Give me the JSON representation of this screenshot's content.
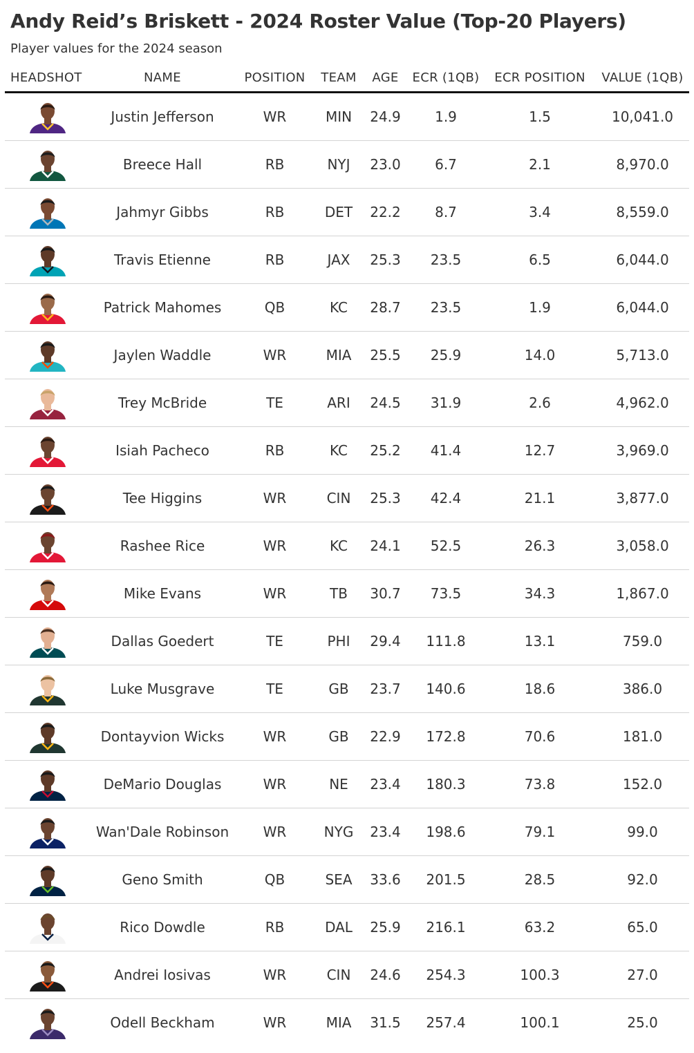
{
  "title": "Andy Reid’s Briskett - 2024 Roster Value (Top-20 Players)",
  "subtitle": "Player values for the 2024 season",
  "columns": {
    "headshot": "HEADSHOT",
    "name": "NAME",
    "position": "POSITION",
    "team": "TEAM",
    "age": "AGE",
    "ecr": "ECR (1QB)",
    "ecr_position": "ECR POSITION",
    "value": "VALUE (1QB)"
  },
  "players": [
    {
      "name": "Justin Jefferson",
      "position": "WR",
      "team": "MIN",
      "age": "24.9",
      "ecr": "1.9",
      "ecr_position": "1.5",
      "value": "10,041.0",
      "jersey": "#4f2683",
      "trim": "#ffc62f",
      "skin": "#7a4a32",
      "hair": "#2b1a12"
    },
    {
      "name": "Breece Hall",
      "position": "RB",
      "team": "NYJ",
      "age": "23.0",
      "ecr": "6.7",
      "ecr_position": "2.1",
      "value": "8,970.0",
      "jersey": "#125740",
      "trim": "#ffffff",
      "skin": "#6b4430",
      "hair": "#1e1e1e"
    },
    {
      "name": "Jahmyr Gibbs",
      "position": "RB",
      "team": "DET",
      "age": "22.2",
      "ecr": "8.7",
      "ecr_position": "3.4",
      "value": "8,559.0",
      "jersey": "#0076b6",
      "trim": "#b0b7bc",
      "skin": "#7a4a32",
      "hair": "#1a1a1a"
    },
    {
      "name": "Travis Etienne",
      "position": "RB",
      "team": "JAX",
      "age": "25.3",
      "ecr": "23.5",
      "ecr_position": "6.5",
      "value": "6,044.0",
      "jersey": "#00a3b5",
      "trim": "#101820",
      "skin": "#5e3a28",
      "hair": "#1a1a1a"
    },
    {
      "name": "Patrick Mahomes",
      "position": "QB",
      "team": "KC",
      "age": "28.7",
      "ecr": "23.5",
      "ecr_position": "1.9",
      "value": "6,044.0",
      "jersey": "#e31837",
      "trim": "#ffb81c",
      "skin": "#9a6a4a",
      "hair": "#2b1a12"
    },
    {
      "name": "Jaylen Waddle",
      "position": "WR",
      "team": "MIA",
      "age": "25.5",
      "ecr": "25.9",
      "ecr_position": "14.0",
      "value": "5,713.0",
      "jersey": "#22b5c2",
      "trim": "#fc4c02",
      "skin": "#5e3a28",
      "hair": "#1a1a1a"
    },
    {
      "name": "Trey McBride",
      "position": "TE",
      "team": "ARI",
      "age": "24.5",
      "ecr": "31.9",
      "ecr_position": "2.6",
      "value": "4,962.0",
      "jersey": "#97233f",
      "trim": "#ffffff",
      "skin": "#e9b99a",
      "hair": "#c8a36a"
    },
    {
      "name": "Isiah Pacheco",
      "position": "RB",
      "team": "KC",
      "age": "25.2",
      "ecr": "41.4",
      "ecr_position": "12.7",
      "value": "3,969.0",
      "jersey": "#e31837",
      "trim": "#ffffff",
      "skin": "#6b4430",
      "hair": "#2b1a12"
    },
    {
      "name": "Tee Higgins",
      "position": "WR",
      "team": "CIN",
      "age": "25.3",
      "ecr": "42.4",
      "ecr_position": "21.1",
      "value": "3,877.0",
      "jersey": "#1c1c1c",
      "trim": "#fb4f14",
      "skin": "#6b4430",
      "hair": "#1a1a1a"
    },
    {
      "name": "Rashee Rice",
      "position": "WR",
      "team": "KC",
      "age": "24.1",
      "ecr": "52.5",
      "ecr_position": "26.3",
      "value": "3,058.0",
      "jersey": "#e31837",
      "trim": "#ffffff",
      "skin": "#6b4430",
      "hair": "#8a1a1a"
    },
    {
      "name": "Mike Evans",
      "position": "WR",
      "team": "TB",
      "age": "30.7",
      "ecr": "73.5",
      "ecr_position": "34.3",
      "value": "1,867.0",
      "jersey": "#d50a0a",
      "trim": "#ffffff",
      "skin": "#b07a58",
      "hair": "#2b1a12"
    },
    {
      "name": "Dallas Goedert",
      "position": "TE",
      "team": "PHI",
      "age": "29.4",
      "ecr": "111.8",
      "ecr_position": "13.1",
      "value": "759.0",
      "jersey": "#004c54",
      "trim": "#ffffff",
      "skin": "#e2b092",
      "hair": "#4a3020"
    },
    {
      "name": "Luke Musgrave",
      "position": "TE",
      "team": "GB",
      "age": "23.7",
      "ecr": "140.6",
      "ecr_position": "18.6",
      "value": "386.0",
      "jersey": "#203731",
      "trim": "#ffb612",
      "skin": "#ecc2a2",
      "hair": "#8a6a3a"
    },
    {
      "name": "Dontayvion Wicks",
      "position": "WR",
      "team": "GB",
      "age": "22.9",
      "ecr": "172.8",
      "ecr_position": "70.6",
      "value": "181.0",
      "jersey": "#203731",
      "trim": "#ffb612",
      "skin": "#5e3a28",
      "hair": "#1a1a1a"
    },
    {
      "name": "DeMario Douglas",
      "position": "WR",
      "team": "NE",
      "age": "23.4",
      "ecr": "180.3",
      "ecr_position": "73.8",
      "value": "152.0",
      "jersey": "#002244",
      "trim": "#c60c30",
      "skin": "#5e3a28",
      "hair": "#1a1a1a"
    },
    {
      "name": "Wan'Dale Robinson",
      "position": "WR",
      "team": "NYG",
      "age": "23.4",
      "ecr": "198.6",
      "ecr_position": "79.1",
      "value": "99.0",
      "jersey": "#0b2265",
      "trim": "#ffffff",
      "skin": "#6b4430",
      "hair": "#1a1a1a"
    },
    {
      "name": "Geno Smith",
      "position": "QB",
      "team": "SEA",
      "age": "33.6",
      "ecr": "201.5",
      "ecr_position": "28.5",
      "value": "92.0",
      "jersey": "#002244",
      "trim": "#69be28",
      "skin": "#5e3a28",
      "hair": "#1a1a1a"
    },
    {
      "name": "Rico Dowdle",
      "position": "RB",
      "team": "DAL",
      "age": "25.9",
      "ecr": "216.1",
      "ecr_position": "63.2",
      "value": "65.0",
      "jersey": "#f4f4f4",
      "trim": "#041e42",
      "skin": "#6b4430",
      "hair": "#6a4a2a"
    },
    {
      "name": "Andrei Iosivas",
      "position": "WR",
      "team": "CIN",
      "age": "24.6",
      "ecr": "254.3",
      "ecr_position": "100.3",
      "value": "27.0",
      "jersey": "#1c1c1c",
      "trim": "#fb4f14",
      "skin": "#8a5a3a",
      "hair": "#1a1a1a"
    },
    {
      "name": "Odell Beckham",
      "position": "WR",
      "team": "MIA",
      "age": "31.5",
      "ecr": "257.4",
      "ecr_position": "100.1",
      "value": "25.0",
      "jersey": "#3b2a6a",
      "trim": "#9a8ac0",
      "skin": "#6b4430",
      "hair": "#1a1a1a"
    }
  ]
}
